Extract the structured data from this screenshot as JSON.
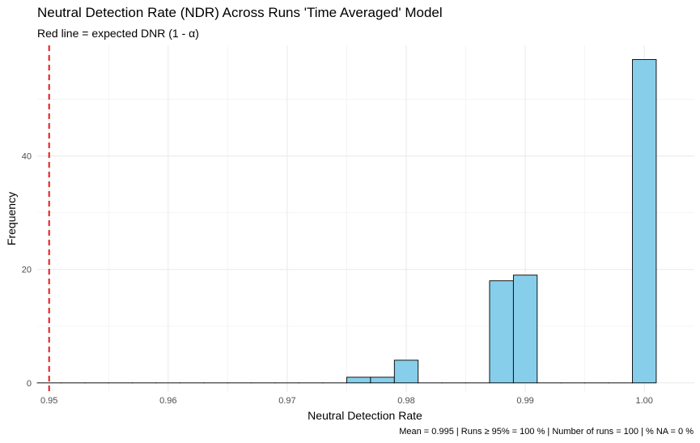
{
  "chart_data": {
    "type": "bar",
    "subtype": "histogram",
    "title": "Neutral Detection Rate (NDR) Across Runs 'Time Averaged' Model",
    "subtitle": "Red line = expected DNR (1 - α)",
    "xlabel": "Neutral Detection Rate",
    "ylabel": "Frequency",
    "caption": "Mean = 0.995 | Runs ≥ 95% = 100 % | Number of runs = 100 | % NA = 0 %",
    "xlim": [
      0.949,
      1.0042
    ],
    "ylim": [
      -1.6,
      59.5
    ],
    "x_ticks": [
      0.95,
      0.96,
      0.97,
      0.98,
      0.99,
      1.0
    ],
    "x_tick_labels": [
      "0.95",
      "0.96",
      "0.97",
      "0.98",
      "0.99",
      "1.00"
    ],
    "y_ticks": [
      0,
      20,
      40
    ],
    "y_tick_labels": [
      "0",
      "20",
      "40"
    ],
    "bin_width": 0.002,
    "bins": [
      {
        "start": 0.949,
        "end": 0.951,
        "count": 0
      },
      {
        "start": 0.951,
        "end": 0.953,
        "count": 0
      },
      {
        "start": 0.953,
        "end": 0.955,
        "count": 0
      },
      {
        "start": 0.955,
        "end": 0.957,
        "count": 0
      },
      {
        "start": 0.957,
        "end": 0.959,
        "count": 0
      },
      {
        "start": 0.959,
        "end": 0.961,
        "count": 0
      },
      {
        "start": 0.961,
        "end": 0.963,
        "count": 0
      },
      {
        "start": 0.963,
        "end": 0.965,
        "count": 0
      },
      {
        "start": 0.965,
        "end": 0.967,
        "count": 0
      },
      {
        "start": 0.967,
        "end": 0.969,
        "count": 0
      },
      {
        "start": 0.969,
        "end": 0.971,
        "count": 0
      },
      {
        "start": 0.971,
        "end": 0.973,
        "count": 0
      },
      {
        "start": 0.973,
        "end": 0.975,
        "count": 0
      },
      {
        "start": 0.975,
        "end": 0.977,
        "count": 1
      },
      {
        "start": 0.977,
        "end": 0.979,
        "count": 1
      },
      {
        "start": 0.979,
        "end": 0.981,
        "count": 4
      },
      {
        "start": 0.981,
        "end": 0.983,
        "count": 0
      },
      {
        "start": 0.983,
        "end": 0.985,
        "count": 0
      },
      {
        "start": 0.985,
        "end": 0.987,
        "count": 0
      },
      {
        "start": 0.987,
        "end": 0.989,
        "count": 18
      },
      {
        "start": 0.989,
        "end": 0.991,
        "count": 19
      },
      {
        "start": 0.991,
        "end": 0.993,
        "count": 0
      },
      {
        "start": 0.993,
        "end": 0.995,
        "count": 0
      },
      {
        "start": 0.995,
        "end": 0.997,
        "count": 0
      },
      {
        "start": 0.997,
        "end": 0.999,
        "count": 0
      },
      {
        "start": 0.999,
        "end": 1.001,
        "count": 57
      }
    ],
    "reference_line": {
      "x": 0.95,
      "color": "#e41a1c",
      "style": "dashed"
    },
    "bar_fill": "#87ceeb",
    "bar_stroke": "#000000",
    "grid": true,
    "legend": "none"
  }
}
